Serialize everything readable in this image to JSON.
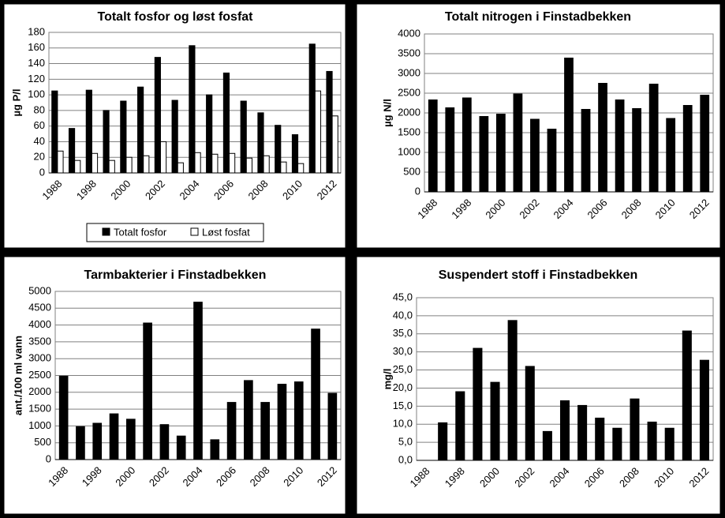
{
  "chart_data": [
    {
      "type": "bar",
      "title": "Totalt fosfor og løst fosfat",
      "y_label": "µg P/l",
      "categories": [
        "1988",
        null,
        "1998",
        null,
        "2000",
        null,
        "2002",
        null,
        "2004",
        null,
        "2006",
        null,
        "2008",
        null,
        "2010",
        null,
        "2012"
      ],
      "series": [
        {
          "name": "Totalt fosfor",
          "color": "#000000",
          "values": [
            105,
            57,
            106,
            80,
            92,
            110,
            148,
            93,
            163,
            100,
            128,
            92,
            77,
            61,
            49,
            165,
            130
          ]
        },
        {
          "name": "Løst fosfat",
          "color": "#ffffff",
          "values": [
            28,
            16,
            25,
            16,
            20,
            22,
            40,
            13,
            26,
            24,
            25,
            19,
            22,
            14,
            12,
            105,
            73
          ]
        }
      ],
      "ylim": [
        0,
        180
      ],
      "yticks": [
        0,
        20,
        40,
        60,
        80,
        100,
        120,
        140,
        160,
        180
      ],
      "grid": true,
      "legend": "bottom"
    },
    {
      "type": "bar",
      "title": "Totalt nitrogen i Finstadbekken",
      "y_label": "µg N/l",
      "categories": [
        "1988",
        null,
        "1998",
        null,
        "2000",
        null,
        "2002",
        null,
        "2004",
        null,
        "2006",
        null,
        "2008",
        null,
        "2010",
        null,
        "2012"
      ],
      "color": "#000000",
      "values": [
        2330,
        2130,
        2380,
        1910,
        1970,
        2480,
        1840,
        1590,
        3390,
        2090,
        2750,
        2330,
        2110,
        2730,
        1860,
        2190,
        2450
      ],
      "ylim": [
        0,
        4000
      ],
      "yticks": [
        0,
        500,
        1000,
        1500,
        2000,
        2500,
        3000,
        3500,
        4000
      ],
      "grid": true
    },
    {
      "type": "bar",
      "title": "Tarmbakterier i Finstadbekken",
      "y_label": "ant./100 ml vann",
      "categories": [
        "1988",
        null,
        "1998",
        null,
        "2000",
        null,
        "2002",
        null,
        "2004",
        null,
        "2006",
        null,
        "2008",
        null,
        "2010",
        null,
        "2012"
      ],
      "color": "#000000",
      "values": [
        2480,
        980,
        1080,
        1360,
        1200,
        4060,
        1040,
        700,
        4680,
        590,
        1700,
        2350,
        1700,
        2240,
        2310,
        3880,
        1970
      ],
      "ylim": [
        0,
        5000
      ],
      "yticks": [
        0,
        500,
        1000,
        1500,
        2000,
        2500,
        3000,
        3500,
        4000,
        4500,
        5000
      ],
      "grid": true
    },
    {
      "type": "bar",
      "title": "Suspendert stoff i Finstadbekken",
      "y_label": "mg/l",
      "categories": [
        "1988",
        null,
        "1998",
        null,
        "2000",
        null,
        "2002",
        null,
        "2004",
        null,
        "2006",
        null,
        "2008",
        null,
        "2010",
        null,
        "2012"
      ],
      "color": "#000000",
      "values": [
        null,
        10.4,
        19.0,
        31.0,
        21.6,
        38.7,
        26.0,
        8.0,
        16.5,
        15.2,
        11.7,
        8.9,
        17.0,
        10.6,
        8.9,
        35.8,
        27.7
      ],
      "ylim": [
        0,
        45
      ],
      "yticks": [
        {
          "value": 0,
          "label": "0,0"
        },
        {
          "value": 5,
          "label": "5,0"
        },
        {
          "value": 10,
          "label": "10,0"
        },
        {
          "value": 15,
          "label": "15,0"
        },
        {
          "value": 20,
          "label": "20,0"
        },
        {
          "value": 25,
          "label": "25,0"
        },
        {
          "value": 30,
          "label": "30,0"
        },
        {
          "value": 35,
          "label": "35,0"
        },
        {
          "value": 40,
          "label": "40,0"
        },
        {
          "value": 45,
          "label": "45,0"
        }
      ],
      "grid": true
    }
  ]
}
